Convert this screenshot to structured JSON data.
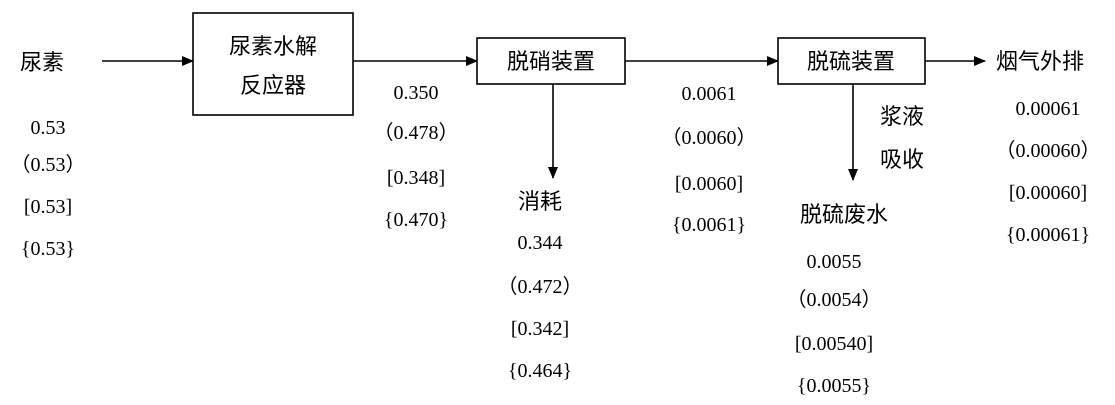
{
  "input": {
    "label": "尿素",
    "values": [
      "0.53",
      "（0.53）",
      "[0.53]",
      "{0.53}"
    ]
  },
  "hydrolysis_reactor": {
    "label_line1": "尿素水解",
    "label_line2": "反应器"
  },
  "after_hydrolysis": {
    "values": [
      "0.350",
      "（0.478）",
      "[0.348]",
      "{0.470}"
    ]
  },
  "denitration_unit": {
    "label": "脱硝装置"
  },
  "consumption": {
    "label": "消耗",
    "values": [
      "0.344",
      "（0.472）",
      "[0.342]",
      "{0.464}"
    ]
  },
  "after_denitration": {
    "values": [
      "0.0061",
      "（0.0060）",
      "[0.0060]",
      "{0.0061}"
    ]
  },
  "desulfurization_unit": {
    "label": "脱硫装置"
  },
  "slurry_absorption": {
    "line1": "浆液",
    "line2": "吸收"
  },
  "desulfurization_wastewater": {
    "label": "脱硫废水",
    "values": [
      "0.0055",
      "（0.0054）",
      "[0.00540]",
      "{0.0055}"
    ]
  },
  "flue_gas_exhaust": {
    "label": "烟气外排",
    "values": [
      "0.00061",
      "（0.00060）",
      "[0.00060]",
      "{0.00061}"
    ]
  }
}
